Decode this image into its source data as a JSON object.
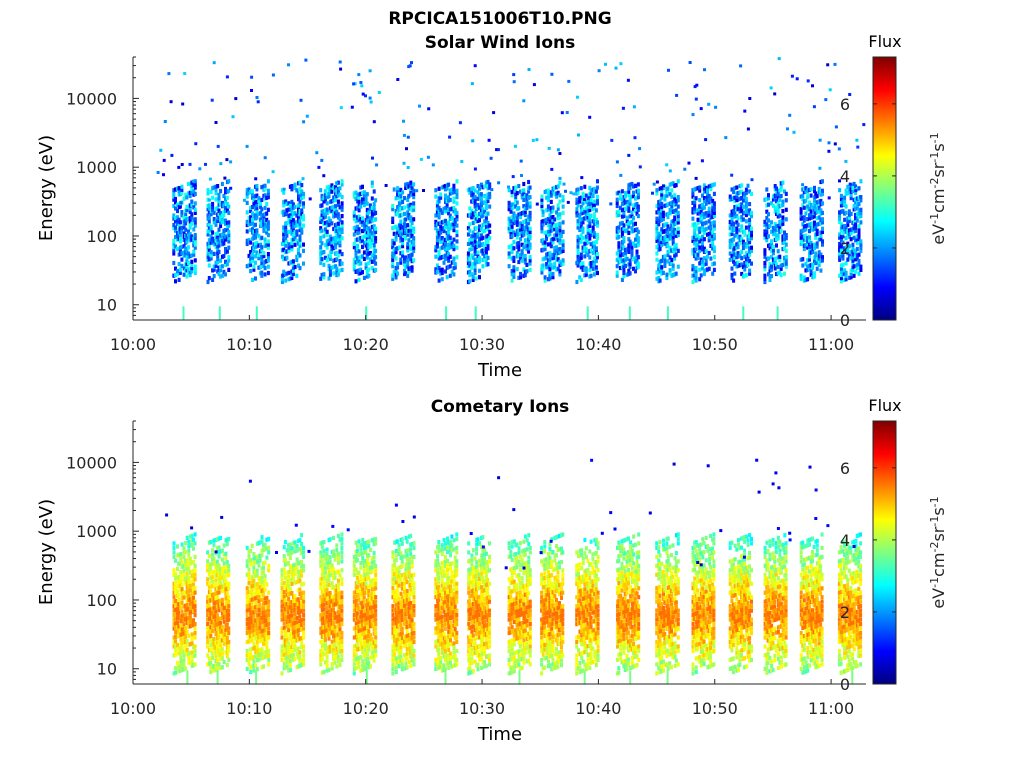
{
  "figure": {
    "filename": "RPCICA151006T10.PNG"
  },
  "chart_data": [
    {
      "type": "heatmap",
      "title": "Solar Wind Ions",
      "xlabel": "Time",
      "ylabel": "Energy (eV)",
      "x_ticks": [
        "10:00",
        "10:10",
        "10:20",
        "10:30",
        "10:40",
        "10:50",
        "11:00"
      ],
      "x_range": [
        "10:00",
        "11:03"
      ],
      "y_scale": "log",
      "y_ticks": [
        10,
        100,
        1000,
        10000
      ],
      "y_range": [
        6,
        40000
      ],
      "colorbar": {
        "label": "Flux",
        "unit_label": "eV-1cm-2sr-1s-1",
        "range": [
          0,
          7.3
        ],
        "ticks": [
          0,
          2,
          4,
          6
        ],
        "colormap": "jet"
      },
      "bursts_minutes": [
        4.3,
        7.2,
        10.6,
        13.6,
        16.9,
        19.8,
        23.1,
        26.8,
        29.6,
        33.1,
        35.9,
        38.9,
        42.4,
        45.8,
        48.9,
        52.1,
        55.1,
        58.2,
        61.5
      ],
      "burst_energy_range_eV": [
        25,
        600
      ],
      "typical_flux": 2.2,
      "peak_flux": 3.2,
      "background": "sparse isolated counts 300–40000 eV, flux 0.5–2.5"
    },
    {
      "type": "heatmap",
      "title": "Cometary Ions",
      "xlabel": "Time",
      "ylabel": "Energy (eV)",
      "x_ticks": [
        "10:00",
        "10:10",
        "10:20",
        "10:30",
        "10:40",
        "10:50",
        "11:00"
      ],
      "x_range": [
        "10:00",
        "11:03"
      ],
      "y_scale": "log",
      "y_ticks": [
        10,
        100,
        1000,
        10000
      ],
      "y_range": [
        6,
        40000
      ],
      "colorbar": {
        "label": "Flux",
        "unit_label": "eV-1cm-2sr-1s-1",
        "range": [
          0,
          7.3
        ],
        "ticks": [
          0,
          2,
          4,
          6
        ],
        "colormap": "jet"
      },
      "bursts_minutes": [
        4.3,
        7.2,
        10.6,
        13.6,
        16.9,
        19.8,
        23.1,
        26.8,
        29.6,
        33.1,
        35.9,
        38.9,
        42.4,
        45.8,
        48.9,
        52.1,
        55.1,
        58.2,
        61.5
      ],
      "burst_energy_range_eV": [
        10,
        900
      ],
      "burst_peak_energy_eV": 60,
      "typical_flux": 4.2,
      "peak_flux": 5.6,
      "background": "sparse isolated counts 300–12000 eV, flux 0.5–1"
    }
  ]
}
